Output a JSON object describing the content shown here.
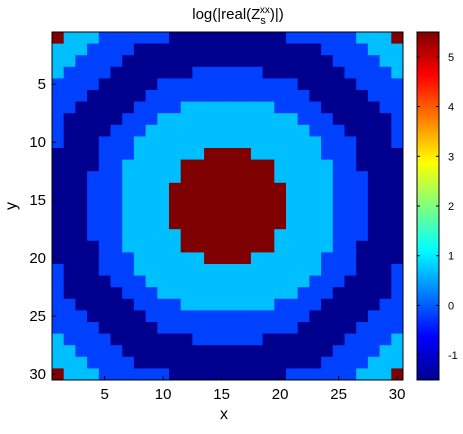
{
  "chart_data": {
    "type": "heatmap",
    "title": {
      "prefix": "log(|real(Z",
      "sub": "s",
      "sup": "xx",
      "suffix": ")|)"
    },
    "xlabel": "x",
    "ylabel": "y",
    "xlim": [
      0.5,
      30.5
    ],
    "ylim": [
      0.5,
      30.5
    ],
    "x_ticks": [
      5,
      10,
      15,
      20,
      25,
      30
    ],
    "y_ticks": [
      5,
      10,
      15,
      20,
      25,
      30
    ],
    "y_direction": "reversed (1 at top)",
    "colorbar": {
      "colormap": "jet",
      "range": [
        -1.5,
        5.5
      ],
      "ticks": [
        -1,
        0,
        1,
        2,
        3,
        4,
        5
      ],
      "placement": "right"
    },
    "grid_size": [
      30,
      30
    ],
    "cell_value_formula": "value by radial distance d from center (15.5,15.5): d<=5 → 5.3, d<=9.5 → 0.9, d<=12 → -0.3, d<=15.5 → -1.3, d<=18 → -0.3, d<=20 → 0.9, else 5.3",
    "levels": [
      {
        "label": "dark-red",
        "value": 5.3
      },
      {
        "label": "light-blue",
        "value": 0.9
      },
      {
        "label": "blue",
        "value": -0.3
      },
      {
        "label": "dark-blue",
        "value": -1.3
      }
    ],
    "colors": {
      "dark-red": "#7F0000",
      "light-blue": "#00BFFF",
      "blue": "#0040FF",
      "dark-blue": "#00008F"
    }
  }
}
